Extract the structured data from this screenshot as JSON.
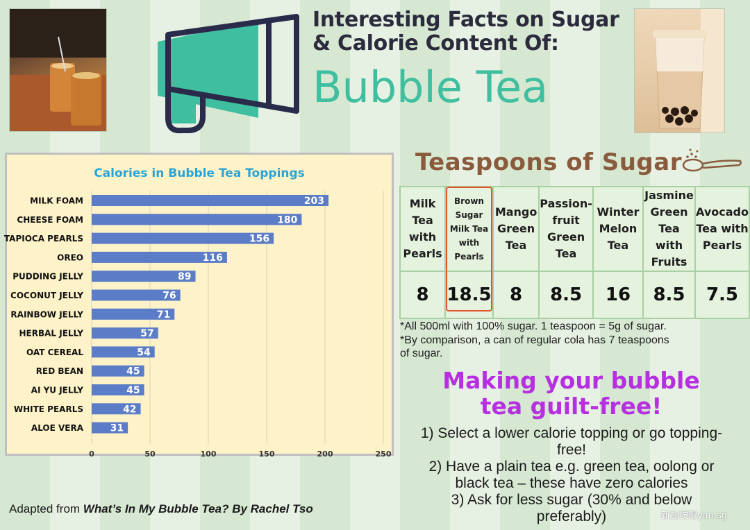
{
  "header": {
    "title_line1": "Interesting Facts on Sugar",
    "title_line2": "& Calorie Content Of:",
    "title_main": "Bubble Tea"
  },
  "chart_data": {
    "type": "bar",
    "orientation": "horizontal",
    "title": "Calories in Bubble Tea Toppings",
    "categories": [
      "MILK FOAM",
      "CHEESE FOAM",
      "TAPIOCA PEARLS",
      "OREO",
      "PUDDING JELLY",
      "COCONUT JELLY",
      "RAINBOW JELLY",
      "HERBAL JELLY",
      "OAT CEREAL",
      "RED BEAN",
      "AI YU JELLY",
      "WHITE PEARLS",
      "ALOE VERA"
    ],
    "values": [
      203,
      180,
      156,
      116,
      89,
      76,
      71,
      57,
      54,
      45,
      45,
      42,
      31
    ],
    "xlim": [
      0,
      250
    ],
    "xticks": [
      0,
      50,
      100,
      150,
      200,
      250
    ],
    "bar_color": "#5b7cc7",
    "grid": "vertical"
  },
  "sugar": {
    "heading": "Teaspoons of Sugar",
    "columns": [
      {
        "header": [
          "Milk",
          "Tea",
          "with",
          "Pearls"
        ],
        "value": "8"
      },
      {
        "header": [
          "Brown",
          "Sugar",
          "Milk Tea",
          "with",
          "Pearls"
        ],
        "value": "18.5",
        "highlight": true
      },
      {
        "header": [
          "Mango",
          "Green",
          "Tea"
        ],
        "value": "8"
      },
      {
        "header": [
          "Passion-",
          "fruit",
          "Green",
          "Tea"
        ],
        "value": "8.5"
      },
      {
        "header": [
          "Winter",
          "Melon",
          "Tea"
        ],
        "value": "16"
      },
      {
        "header": [
          "Jasmine",
          "Green",
          "Tea with",
          "Fruits"
        ],
        "value": "8.5"
      },
      {
        "header": [
          "Avocado",
          "Tea with",
          "Pearls"
        ],
        "value": "7.5"
      }
    ],
    "highlight_color": "#e2552b",
    "note1": "*All 500ml with 100% sugar. 1 teaspoon = 5g of sugar.",
    "note2a": "*By comparison, a can of regular cola has 7 teaspoons",
    "note2b": "of sugar."
  },
  "guilt_free": {
    "title_line1": "Making your bubble",
    "title_line2": "tea guilt-free!",
    "tip1a": "1) Select a lower calorie topping or go topping-",
    "tip1b": "free!",
    "tip2a": "2) Have a plain tea e.g. green tea, oolong or",
    "tip2b": "black tea – these have zero calories",
    "tip3a": "3) Ask for less sugar (30% and below",
    "tip3b": "preferably)"
  },
  "credit": {
    "prefix": "Adapted from ",
    "source": "What’s In My Bubble Tea? By Rachel Tso"
  },
  "watermark": "新加坡眼yan.sg",
  "colors": {
    "accent_teal": "#3fbf9f",
    "megaphone_navy": "#2a2a4a",
    "sugar_heading": "#8a5a3c",
    "guilt_title": "#b62fe0"
  }
}
